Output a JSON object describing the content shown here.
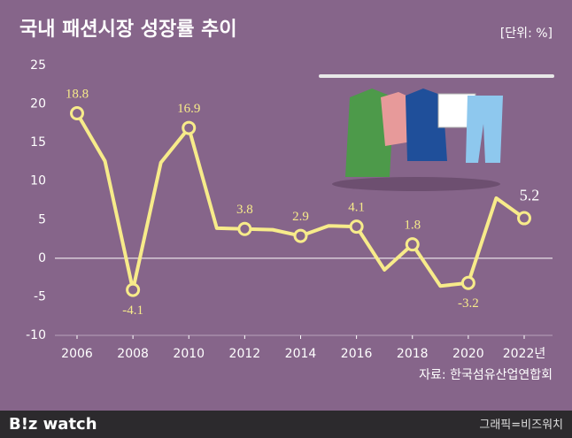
{
  "chart_data": {
    "type": "line",
    "title": "국내 패션시장 성장률 추이",
    "unit_label": "[단위: %]",
    "source": "자료: 한국섬유산업연합회",
    "x": [
      2006,
      2007,
      2008,
      2009,
      2010,
      2011,
      2012,
      2013,
      2014,
      2015,
      2016,
      2017,
      2018,
      2019,
      2020,
      2021,
      2022
    ],
    "series": [
      {
        "color": "#f7eb8a",
        "values": [
          18.8,
          12.6,
          -4.1,
          12.4,
          16.9,
          3.9,
          3.8,
          3.7,
          2.9,
          4.2,
          4.1,
          -1.5,
          1.8,
          -3.6,
          -3.2,
          7.8,
          5.2
        ],
        "value_labels": [
          "18.8",
          null,
          "-4.1",
          null,
          "16.9",
          null,
          "3.8",
          null,
          "2.9",
          null,
          "4.1",
          null,
          "1.8",
          null,
          "-3.2",
          null,
          "5.2"
        ]
      }
    ],
    "xlim": [
      2006,
      2022
    ],
    "xticks": [
      2006,
      2008,
      2010,
      2012,
      2014,
      2016,
      2018,
      2020,
      {
        "value": 2022,
        "label": "2022년"
      }
    ],
    "ylim": [
      -10,
      25
    ],
    "yticks": [
      -10,
      -5,
      0,
      5,
      10,
      15,
      20,
      25
    ],
    "grid": false,
    "brand": "B!z watch",
    "credit": "그래픽=비즈워치"
  }
}
